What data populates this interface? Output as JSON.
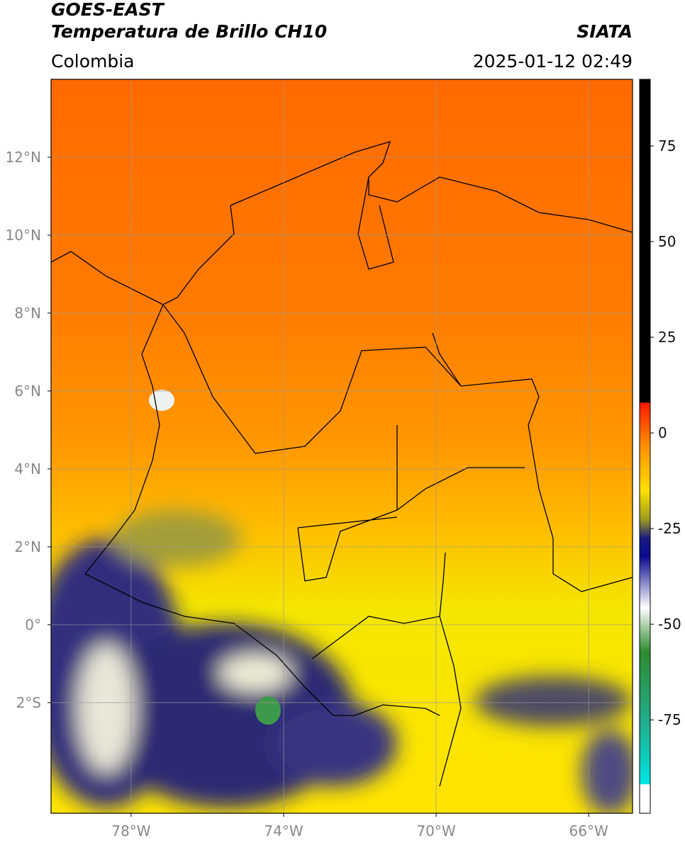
{
  "header": {
    "title": "GOES-EAST",
    "subtitle": "Temperatura de Brillo CH10",
    "source": "SIATA",
    "region": "Colombia",
    "timestamp": "2025-01-12 02:49"
  },
  "map": {
    "lonlim": [
      -80.1,
      -64.85
    ],
    "latlim": [
      -4.84,
      14.0
    ],
    "lon_ticks": [
      {
        "value": -78,
        "label": "78°W"
      },
      {
        "value": -74,
        "label": "74°W"
      },
      {
        "value": -70,
        "label": "70°W"
      },
      {
        "value": -66,
        "label": "66°W"
      }
    ],
    "lat_ticks": [
      {
        "value": 12,
        "label": "12°N"
      },
      {
        "value": 10,
        "label": "10°N"
      },
      {
        "value": 8,
        "label": "8°N"
      },
      {
        "value": 6,
        "label": "6°N"
      },
      {
        "value": 4,
        "label": "4°N"
      },
      {
        "value": 2,
        "label": "2°N"
      },
      {
        "value": 0,
        "label": "0°"
      },
      {
        "value": -2,
        "label": "2°S"
      }
    ]
  },
  "colorbar": {
    "lim": [
      -99.4,
      92.4
    ],
    "ticks": [
      75,
      50,
      25,
      0,
      -25,
      -50,
      -75
    ]
  }
}
